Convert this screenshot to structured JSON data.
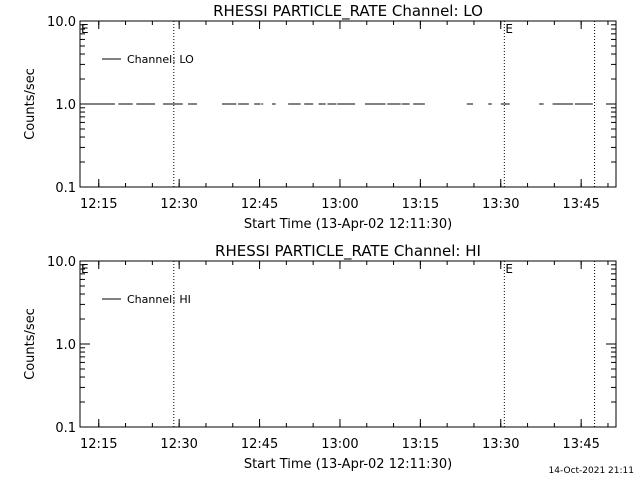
{
  "chart_data": [
    {
      "type": "line",
      "title": "RHESSI PARTICLE_RATE Channel: LO",
      "xlabel": "Start Time (13-Apr-02 12:11:30)",
      "ylabel": "Counts/sec",
      "y_scale": "log",
      "ylim": [
        0.1,
        10.0
      ],
      "yticks": [
        "0.1",
        "1.0",
        "10.0"
      ],
      "xlim": [
        "12:11:30",
        "13:51:30"
      ],
      "xticks": [
        "12:15",
        "12:30",
        "12:45",
        "13:00",
        "13:15",
        "13:30",
        "13:45"
      ],
      "grid": false,
      "legend_placement": "top-left",
      "legend": [
        "Channel: LO"
      ],
      "vlines": [
        "12:29:00",
        "13:30:40",
        "13:47:30"
      ],
      "markers": [
        {
          "label": "E",
          "x": "12:11:30"
        },
        {
          "label": "E",
          "x": "13:30:40"
        }
      ],
      "series": [
        {
          "name": "Channel: LO",
          "y": 1.0,
          "segments": [
            [
              "12:11:30",
              "12:18:00"
            ],
            [
              "12:18:40",
              "12:21:20"
            ],
            [
              "12:22:00",
              "12:25:30"
            ],
            [
              "12:27:00",
              "12:30:40"
            ],
            [
              "12:31:40",
              "12:33:20"
            ],
            [
              "12:38:00",
              "12:40:40"
            ],
            [
              "12:41:00",
              "12:43:00"
            ],
            [
              "12:44:00",
              "12:45:10"
            ],
            [
              "12:45:20",
              "12:45:40"
            ],
            [
              "12:47:20",
              "12:48:00"
            ],
            [
              "12:50:20",
              "12:52:40"
            ],
            [
              "12:53:20",
              "12:55:00"
            ],
            [
              "12:56:00",
              "12:57:20"
            ],
            [
              "12:57:40",
              "12:59:20"
            ],
            [
              "12:59:30",
              "13:02:50"
            ],
            [
              "13:04:40",
              "13:08:30"
            ],
            [
              "13:08:50",
              "13:11:20"
            ],
            [
              "13:11:30",
              "13:13:00"
            ],
            [
              "13:13:40",
              "13:15:50"
            ],
            [
              "13:23:40",
              "13:24:50"
            ],
            [
              "13:27:40",
              "13:28:20"
            ],
            [
              "13:30:00",
              "13:31:40"
            ],
            [
              "13:37:10",
              "13:38:00"
            ],
            [
              "13:39:40",
              "13:43:30"
            ],
            [
              "13:43:50",
              "13:47:10"
            ]
          ]
        }
      ]
    },
    {
      "type": "line",
      "title": "RHESSI PARTICLE_RATE Channel: HI",
      "xlabel": "Start Time (13-Apr-02 12:11:30)",
      "ylabel": "Counts/sec",
      "y_scale": "log",
      "ylim": [
        0.1,
        10.0
      ],
      "yticks": [
        "0.1",
        "1.0",
        "10.0"
      ],
      "xlim": [
        "12:11:30",
        "13:51:30"
      ],
      "xticks": [
        "12:15",
        "12:30",
        "12:45",
        "13:00",
        "13:15",
        "13:30",
        "13:45"
      ],
      "grid": false,
      "legend_placement": "top-left",
      "legend": [
        "Channel: HI"
      ],
      "vlines": [
        "12:29:00",
        "13:30:40",
        "13:47:30"
      ],
      "markers": [
        {
          "label": "E",
          "x": "12:11:30"
        },
        {
          "label": "E",
          "x": "13:30:40"
        }
      ],
      "series": [
        {
          "name": "Channel: HI",
          "y": 1.0,
          "segments": []
        }
      ]
    }
  ],
  "footer": {
    "timestamp": "14-Oct-2021 21:11"
  }
}
